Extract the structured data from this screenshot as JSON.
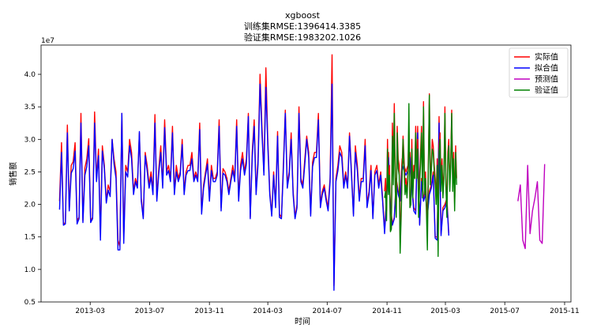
{
  "chart_data": {
    "type": "line",
    "title": [
      "xgboost",
      "训练集RMSE:1396414.3385",
      "验证集RMSE:1983202.1026"
    ],
    "xlabel": "时间",
    "ylabel": "销售额",
    "y_offset_text": "1e7",
    "x_ticks": [
      "2013-03",
      "2013-07",
      "2013-11",
      "2014-03",
      "2014-07",
      "2014-11",
      "2015-03",
      "2015-07",
      "2015-11"
    ],
    "xlim": [
      "2012-11-20",
      "2015-11-14"
    ],
    "y_ticks": [
      0.5,
      1.0,
      1.5,
      2.0,
      2.5,
      3.0,
      3.5,
      4.0
    ],
    "y_tick_labels": [
      "0.5",
      "1.0",
      "1.5",
      "2.0",
      "2.5",
      "3.0",
      "3.5",
      "4.0"
    ],
    "ylim": [
      0.5,
      4.45
    ],
    "grid": false,
    "legend_position": "top-right",
    "series": [
      {
        "name": "实际值",
        "color": "#ff0000"
      },
      {
        "name": "拟合值",
        "color": "#0000ff"
      },
      {
        "name": "预测值",
        "color": "#bf00bf"
      },
      {
        "name": "验证值",
        "color": "#008000"
      }
    ],
    "train": {
      "x_start": "2012-12-28",
      "x_step_days": 4,
      "actual": [
        2.05,
        2.95,
        1.7,
        1.72,
        3.22,
        1.92,
        2.6,
        2.66,
        2.95,
        1.75,
        1.8,
        3.4,
        1.75,
        2.56,
        2.7,
        3.01,
        1.75,
        1.8,
        3.42,
        2.4,
        2.85,
        1.55,
        2.9,
        2.6,
        2.05,
        2.3,
        2.2,
        3.0,
        2.7,
        2.5,
        1.45,
        1.35,
        3.4,
        1.5,
        2.6,
        2.5,
        3.0,
        2.8,
        2.2,
        2.4,
        2.3,
        3.1,
        2.1,
        1.8,
        2.8,
        2.6,
        2.3,
        2.5,
        2.2,
        3.38,
        2.1,
        2.55,
        2.9,
        2.3,
        3.3,
        2.5,
        2.6,
        2.4,
        3.2,
        2.2,
        2.6,
        2.4,
        2.5,
        3.0,
        2.2,
        2.5,
        2.6,
        2.6,
        2.8,
        2.4,
        2.5,
        2.4,
        3.25,
        1.9,
        2.3,
        2.5,
        2.7,
        2.1,
        2.6,
        2.4,
        2.4,
        2.5,
        3.3,
        1.95,
        2.55,
        2.5,
        2.4,
        2.2,
        2.4,
        2.6,
        2.4,
        3.3,
        2.1,
        2.6,
        2.8,
        2.5,
        2.7,
        3.4,
        1.8,
        2.8,
        3.3,
        2.2,
        2.7,
        4.0,
        3.2,
        2.5,
        4.1,
        3.0,
        2.2,
        1.85,
        2.5,
        2.0,
        3.12,
        1.85,
        1.8,
        2.6,
        3.45,
        2.3,
        2.5,
        3.1,
        2.2,
        1.8,
        2.0,
        3.5,
        2.4,
        2.3,
        2.7,
        3.05,
        2.8,
        1.85,
        2.65,
        2.8,
        2.8,
        3.4,
        2.0,
        2.2,
        2.3,
        2.1,
        1.95,
        2.4,
        4.3,
        0.75,
        2.4,
        2.6,
        2.9,
        2.8,
        2.3,
        2.5,
        2.3,
        3.1,
        2.5,
        1.85,
        2.9,
        2.6,
        2.1,
        2.4,
        2.4,
        3.0,
        2.0,
        2.2,
        2.6,
        1.8,
        2.5,
        2.6,
        2.3,
        2.5,
        2.1,
        1.6,
        2.1,
        2.8,
        2.0,
        1.7,
        1.8,
        2.4,
        2.2,
        2.1,
        2.7,
        2.6,
        2.5,
        2.6,
        2.8,
        2.3,
        1.95,
        1.9,
        3.2,
        1.7,
        2.4,
        2.1,
        2.2,
        1.85,
        2.2,
        2.3,
        2.5,
        1.5,
        1.5,
        3.35,
        1.55,
        1.95,
        2.0,
        2.1,
        1.55
      ],
      "fitted": [
        1.92,
        2.8,
        1.68,
        1.7,
        3.1,
        1.9,
        2.48,
        2.55,
        2.82,
        1.7,
        1.78,
        3.25,
        1.72,
        2.45,
        2.58,
        2.9,
        1.72,
        1.78,
        3.25,
        2.35,
        2.75,
        1.45,
        2.82,
        2.55,
        2.02,
        2.22,
        2.12,
        3.0,
        2.62,
        2.4,
        1.3,
        1.3,
        3.4,
        1.4,
        2.5,
        2.42,
        2.9,
        2.7,
        2.15,
        2.35,
        2.25,
        3.12,
        2.05,
        1.78,
        2.75,
        2.52,
        2.25,
        2.42,
        2.15,
        3.25,
        2.05,
        2.48,
        2.8,
        2.25,
        3.18,
        2.45,
        2.52,
        2.35,
        3.1,
        2.15,
        2.5,
        2.35,
        2.45,
        2.92,
        2.15,
        2.45,
        2.52,
        2.52,
        2.7,
        2.35,
        2.45,
        2.35,
        3.15,
        1.85,
        2.25,
        2.45,
        2.62,
        2.05,
        2.52,
        2.35,
        2.35,
        2.45,
        3.2,
        1.9,
        2.48,
        2.45,
        2.35,
        2.15,
        2.35,
        2.52,
        2.35,
        3.2,
        2.05,
        2.52,
        2.7,
        2.45,
        2.62,
        3.35,
        1.78,
        2.72,
        3.2,
        2.15,
        2.62,
        3.85,
        3.1,
        2.45,
        3.8,
        2.92,
        2.15,
        1.82,
        2.45,
        1.95,
        3.05,
        1.8,
        1.78,
        2.52,
        3.4,
        2.25,
        2.45,
        3.0,
        2.15,
        1.78,
        1.95,
        3.4,
        2.35,
        2.25,
        2.62,
        3.0,
        2.72,
        1.82,
        2.58,
        2.72,
        2.72,
        3.3,
        1.95,
        2.15,
        2.25,
        2.05,
        1.9,
        2.35,
        3.85,
        0.68,
        2.35,
        2.52,
        2.8,
        2.72,
        2.25,
        2.45,
        2.25,
        3.05,
        2.45,
        1.82,
        2.8,
        2.52,
        2.05,
        2.35,
        2.35,
        2.9,
        1.95,
        2.15,
        2.52,
        1.78,
        2.45,
        2.52,
        2.25,
        2.45,
        2.05,
        1.55,
        2.05,
        2.72,
        1.95,
        1.68,
        1.78,
        2.35,
        2.15,
        2.05,
        2.62,
        2.52,
        2.45,
        2.52,
        2.72,
        2.25,
        1.9,
        1.85,
        3.1,
        1.68,
        2.35,
        2.05,
        2.15,
        1.82,
        2.15,
        2.25,
        2.45,
        1.48,
        1.45,
        3.25,
        1.52,
        1.9,
        1.95,
        2.05,
        1.52
      ]
    },
    "validation": {
      "x_start": "2014-10-27",
      "x_step_days": 2,
      "actual": [
        2.2,
        2.4,
        1.9,
        3.0,
        2.3,
        2.6,
        1.6,
        1.65,
        3.25,
        2.5,
        3.55,
        2.4,
        1.9,
        3.2,
        2.7,
        2.6,
        1.4,
        1.95,
        2.6,
        3.05,
        2.7,
        2.3,
        2.4,
        2.2,
        2.5,
        3.2,
        2.0,
        2.1,
        3.0,
        2.2,
        2.6,
        2.5,
        3.2,
        2.5,
        3.0,
        2.0,
        2.4,
        2.8,
        3.2,
        2.2,
        3.58,
        2.3,
        2.5,
        2.0,
        1.7,
        2.7,
        3.7,
        2.4,
        2.6,
        3.0,
        2.9,
        2.6,
        2.4,
        2.1,
        2.7,
        1.6,
        2.9,
        3.1,
        2.3,
        2.7,
        2.2,
        2.5,
        3.5,
        2.4,
        1.9,
        2.8,
        3.0,
        2.3,
        2.7,
        3.45,
        2.3,
        2.8,
        2.0,
        2.9,
        2.4
      ],
      "validation": [
        2.1,
        2.2,
        1.75,
        2.85,
        2.15,
        2.45,
        1.58,
        1.62,
        3.05,
        2.3,
        3.4,
        2.2,
        1.8,
        3.1,
        2.55,
        2.45,
        1.25,
        1.8,
        2.45,
        3.0,
        2.55,
        2.15,
        2.3,
        2.1,
        2.4,
        3.55,
        1.95,
        2.0,
        2.85,
        2.1,
        2.5,
        2.4,
        3.1,
        2.4,
        2.85,
        1.8,
        2.3,
        2.65,
        3.1,
        2.1,
        3.5,
        2.15,
        2.4,
        1.9,
        1.3,
        2.6,
        3.68,
        2.3,
        2.5,
        2.85,
        2.8,
        2.5,
        2.3,
        2.0,
        2.6,
        1.2,
        2.8,
        3.0,
        2.2,
        2.6,
        2.1,
        2.4,
        3.4,
        2.3,
        1.8,
        2.7,
        2.9,
        2.2,
        2.6,
        3.4,
        2.2,
        2.7,
        1.9,
        2.8,
        2.3
      ]
    },
    "prediction": {
      "x_start": "2015-07-28",
      "x_step_days": 5,
      "values": [
        2.05,
        2.3,
        1.45,
        1.32,
        2.6,
        1.55,
        1.9,
        2.1,
        2.35,
        1.45,
        1.4,
        2.62
      ]
    }
  }
}
